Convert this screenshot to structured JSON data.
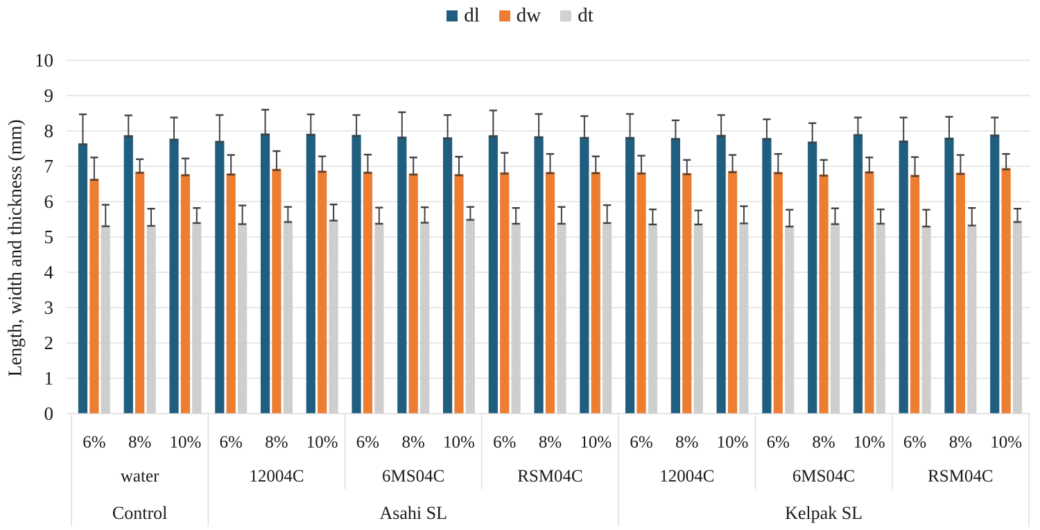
{
  "figure": {
    "background": "#ffffff"
  },
  "legend": {
    "items": [
      {
        "label": "dl",
        "color": "#1F5E7F",
        "textured": false
      },
      {
        "label": "dw",
        "color": "#ED7D31",
        "textured": false
      },
      {
        "label": "dt",
        "color": "#C9C9C9",
        "textured": true
      }
    ]
  },
  "colors": {
    "grid": "#D9D9D9",
    "axis_table_line": "#D9D9D9",
    "error_bar": "#404040",
    "text": "#1A1A1A",
    "dl": "#1F5E7F",
    "dw": "#ED7D31",
    "dt": "#C9C9C9"
  },
  "chart_data": {
    "type": "bar",
    "title": "",
    "xlabel": "",
    "ylabel": "Length, width and thickness (mm)",
    "ylim": [
      0,
      10
    ],
    "yticks": [
      0,
      1,
      2,
      3,
      4,
      5,
      6,
      7,
      8,
      9,
      10
    ],
    "grid": true,
    "legend_position": "top-center",
    "legend_entries": [
      "dl",
      "dw",
      "dt"
    ],
    "category_levels": {
      "concentrations": [
        "6%",
        "8%",
        "10%",
        "6%",
        "8%",
        "10%",
        "6%",
        "8%",
        "10%",
        "6%",
        "8%",
        "10%",
        "6%",
        "8%",
        "10%",
        "6%",
        "8%",
        "10%",
        "6%",
        "8%",
        "10%"
      ],
      "subgroups": [
        {
          "label": "water",
          "span_triplets": 3
        },
        {
          "label": "12004C",
          "span_triplets": 3
        },
        {
          "label": "6MS04C",
          "span_triplets": 3
        },
        {
          "label": "RSM04C",
          "span_triplets": 3
        },
        {
          "label": "12004C",
          "span_triplets": 3
        },
        {
          "label": "6MS04C",
          "span_triplets": 3
        },
        {
          "label": "RSM04C",
          "span_triplets": 3
        }
      ],
      "groups": [
        {
          "label": "Control",
          "span_triplets": 3
        },
        {
          "label": "Asahi SL",
          "span_triplets": 9
        },
        {
          "label": "Kelpak SL",
          "span_triplets": 9
        }
      ]
    },
    "series": [
      {
        "name": "dl",
        "color": "#1F5E7F",
        "pattern": "solid",
        "values": [
          7.65,
          7.88,
          7.78,
          7.72,
          7.93,
          7.92,
          7.89,
          7.84,
          7.82,
          7.88,
          7.85,
          7.83,
          7.83,
          7.8,
          7.89,
          7.8,
          7.7,
          7.91,
          7.73,
          7.81,
          7.9
        ],
        "errors_plus": [
          0.82,
          0.56,
          0.6,
          0.73,
          0.67,
          0.55,
          0.56,
          0.69,
          0.63,
          0.7,
          0.63,
          0.59,
          0.65,
          0.5,
          0.56,
          0.53,
          0.52,
          0.47,
          0.65,
          0.59,
          0.48
        ]
      },
      {
        "name": "dw",
        "color": "#ED7D31",
        "pattern": "solid",
        "values": [
          6.65,
          6.85,
          6.78,
          6.8,
          6.93,
          6.88,
          6.85,
          6.8,
          6.78,
          6.83,
          6.84,
          6.84,
          6.83,
          6.81,
          6.87,
          6.84,
          6.77,
          6.86,
          6.76,
          6.82,
          6.95
        ],
        "errors_plus": [
          0.6,
          0.35,
          0.44,
          0.52,
          0.5,
          0.4,
          0.48,
          0.45,
          0.49,
          0.55,
          0.51,
          0.44,
          0.47,
          0.37,
          0.45,
          0.51,
          0.41,
          0.39,
          0.5,
          0.5,
          0.4
        ]
      },
      {
        "name": "dt",
        "color": "#C9C9C9",
        "pattern": "dots",
        "values": [
          5.34,
          5.35,
          5.43,
          5.4,
          5.46,
          5.5,
          5.41,
          5.44,
          5.52,
          5.41,
          5.41,
          5.43,
          5.39,
          5.39,
          5.42,
          5.33,
          5.4,
          5.41,
          5.33,
          5.36,
          5.46
        ],
        "errors_plus": [
          0.57,
          0.45,
          0.39,
          0.49,
          0.39,
          0.42,
          0.42,
          0.4,
          0.33,
          0.41,
          0.44,
          0.47,
          0.39,
          0.36,
          0.45,
          0.44,
          0.41,
          0.37,
          0.44,
          0.46,
          0.34
        ]
      }
    ]
  }
}
